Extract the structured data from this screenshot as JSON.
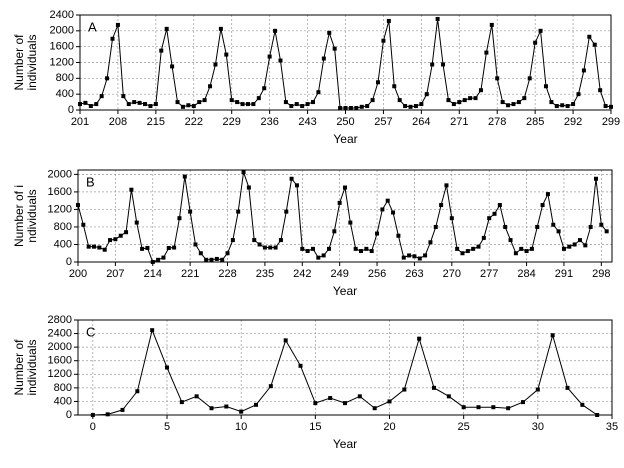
{
  "chart_data": [
    {
      "type": "line",
      "label": "A",
      "xlabel": "Year",
      "ylabel": [
        "Number of",
        "individuals"
      ],
      "color": "#000000",
      "grid": true,
      "xlim": [
        201,
        299
      ],
      "xticks": [
        201,
        208,
        215,
        222,
        229,
        236,
        243,
        250,
        257,
        264,
        271,
        278,
        285,
        292,
        299
      ],
      "ylim": [
        0,
        2400
      ],
      "yticks": [
        0,
        400,
        800,
        1200,
        1600,
        2000,
        2400
      ],
      "x": [
        201,
        202,
        203,
        204,
        205,
        206,
        207,
        208,
        209,
        210,
        211,
        212,
        213,
        214,
        215,
        216,
        217,
        218,
        219,
        220,
        221,
        222,
        223,
        224,
        225,
        226,
        227,
        228,
        229,
        230,
        231,
        232,
        233,
        234,
        235,
        236,
        237,
        238,
        239,
        240,
        241,
        242,
        243,
        244,
        245,
        246,
        247,
        248,
        249,
        250,
        251,
        252,
        253,
        254,
        255,
        256,
        257,
        258,
        259,
        260,
        261,
        262,
        263,
        264,
        265,
        266,
        267,
        268,
        269,
        270,
        271,
        272,
        273,
        274,
        275,
        276,
        277,
        278,
        279,
        280,
        281,
        282,
        283,
        284,
        285,
        286,
        287,
        288,
        289,
        290,
        291,
        292,
        293,
        294,
        295,
        296,
        297,
        298,
        299
      ],
      "values": [
        150,
        180,
        100,
        150,
        350,
        800,
        1800,
        2150,
        350,
        150,
        200,
        180,
        150,
        100,
        150,
        1500,
        2050,
        1100,
        200,
        80,
        120,
        100,
        200,
        250,
        600,
        1150,
        2050,
        1400,
        250,
        200,
        150,
        150,
        150,
        300,
        550,
        1350,
        2000,
        1250,
        200,
        100,
        150,
        100,
        150,
        200,
        450,
        1300,
        1950,
        1550,
        50,
        50,
        50,
        50,
        80,
        100,
        250,
        700,
        1750,
        2250,
        600,
        250,
        100,
        80,
        100,
        150,
        400,
        1150,
        2300,
        1150,
        250,
        150,
        200,
        250,
        300,
        300,
        500,
        1450,
        2150,
        800,
        200,
        120,
        150,
        200,
        300,
        800,
        1700,
        2000,
        600,
        200,
        100,
        120,
        100,
        150,
        400,
        1000,
        1850,
        1650,
        500,
        100,
        80
      ]
    },
    {
      "type": "line",
      "label": "B",
      "xlabel": "Year",
      "ylabel": [
        "Number of i",
        "ndividuals"
      ],
      "color": "#000000",
      "grid": true,
      "xlim": [
        200,
        300
      ],
      "xticks": [
        200,
        207,
        214,
        221,
        228,
        235,
        242,
        249,
        256,
        263,
        270,
        277,
        284,
        291,
        298
      ],
      "ylim": [
        0,
        2100
      ],
      "yticks": [
        0,
        400,
        800,
        1200,
        1600,
        2000
      ],
      "x": [
        200,
        201,
        202,
        203,
        204,
        205,
        206,
        207,
        208,
        209,
        210,
        211,
        212,
        213,
        214,
        215,
        216,
        217,
        218,
        219,
        220,
        221,
        222,
        223,
        224,
        225,
        226,
        227,
        228,
        229,
        230,
        231,
        232,
        233,
        234,
        235,
        236,
        237,
        238,
        239,
        240,
        241,
        242,
        243,
        244,
        245,
        246,
        247,
        248,
        249,
        250,
        251,
        252,
        253,
        254,
        255,
        256,
        257,
        258,
        259,
        260,
        261,
        262,
        263,
        264,
        265,
        266,
        267,
        268,
        269,
        270,
        271,
        272,
        273,
        274,
        275,
        276,
        277,
        278,
        279,
        280,
        281,
        282,
        283,
        284,
        285,
        286,
        287,
        288,
        289,
        290,
        291,
        292,
        293,
        294,
        295,
        296,
        297,
        298,
        299
      ],
      "values": [
        1300,
        850,
        350,
        350,
        330,
        280,
        500,
        520,
        600,
        680,
        1650,
        900,
        300,
        320,
        0,
        50,
        100,
        320,
        330,
        1000,
        1950,
        1150,
        400,
        200,
        50,
        50,
        70,
        50,
        200,
        500,
        1150,
        2050,
        1700,
        500,
        400,
        330,
        330,
        330,
        500,
        1150,
        1900,
        1750,
        300,
        250,
        300,
        100,
        150,
        300,
        700,
        1350,
        1700,
        900,
        300,
        250,
        300,
        250,
        650,
        1200,
        1400,
        1130,
        600,
        100,
        150,
        130,
        80,
        150,
        450,
        800,
        1300,
        1750,
        1000,
        300,
        200,
        250,
        300,
        350,
        550,
        1000,
        1100,
        1300,
        800,
        500,
        200,
        300,
        250,
        300,
        800,
        1300,
        1550,
        850,
        700,
        300,
        350,
        400,
        500,
        380,
        800,
        1900,
        850,
        700
      ]
    },
    {
      "type": "line",
      "label": "C",
      "xlabel": "Year",
      "ylabel": [
        "Number of",
        "individuals"
      ],
      "color": "#000000",
      "grid": true,
      "xlim": [
        -1,
        35
      ],
      "xticks": [
        0,
        5,
        10,
        15,
        20,
        25,
        30,
        35
      ],
      "ylim": [
        0,
        2800
      ],
      "yticks": [
        0,
        400,
        800,
        1200,
        1600,
        2000,
        2400,
        2800
      ],
      "x": [
        0,
        1,
        2,
        3,
        4,
        5,
        6,
        7,
        8,
        9,
        10,
        11,
        12,
        13,
        14,
        15,
        16,
        17,
        18,
        19,
        20,
        21,
        22,
        23,
        24,
        25,
        26,
        27,
        28,
        29,
        30,
        31,
        32,
        33,
        34
      ],
      "values": [
        0,
        20,
        150,
        700,
        2500,
        1400,
        380,
        550,
        200,
        250,
        100,
        300,
        850,
        2200,
        1450,
        350,
        500,
        350,
        550,
        200,
        400,
        750,
        2250,
        800,
        550,
        230,
        230,
        230,
        200,
        380,
        750,
        2350,
        800,
        300,
        0
      ]
    }
  ]
}
